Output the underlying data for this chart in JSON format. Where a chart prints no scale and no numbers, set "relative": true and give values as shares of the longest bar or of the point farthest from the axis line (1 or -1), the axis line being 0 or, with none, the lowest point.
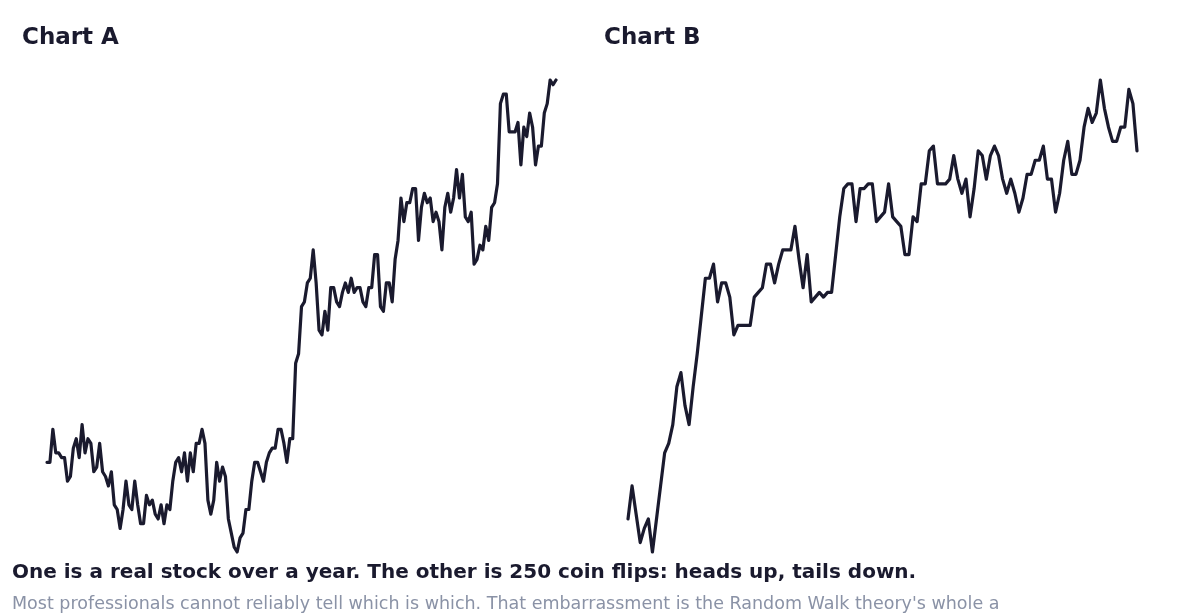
{
  "chart_data": [
    {
      "type": "line",
      "title": "Chart A",
      "relative": true,
      "annotations": [
        "One is a real stock over a year. The other is 250 coin flips: heads up, tails down.",
        "Most professionals cannot reliably tell which is which. That embarrassment is the Random Walk theory's whole a"
      ],
      "categories": [
        null,
        null,
        null,
        null,
        null,
        null,
        null,
        null,
        null,
        null,
        null,
        null,
        null,
        null,
        null,
        null,
        null,
        null,
        null,
        null,
        null,
        null,
        null,
        null,
        null,
        null,
        null,
        null,
        null,
        null,
        null,
        null,
        null,
        null,
        null,
        null,
        null,
        null,
        null,
        null,
        null,
        null,
        null,
        null,
        null,
        null,
        null,
        null,
        null,
        null,
        null,
        null,
        null,
        null,
        null,
        null,
        null,
        null,
        null,
        null,
        null,
        null,
        null,
        null,
        null,
        null,
        null,
        null,
        null,
        null,
        null,
        null,
        null,
        null,
        null,
        null,
        null,
        null,
        null,
        null,
        null,
        null,
        null,
        null,
        null,
        null,
        null,
        null,
        null,
        null,
        null,
        null,
        null,
        null,
        null,
        null,
        null,
        null,
        null,
        null,
        null,
        null,
        null,
        null,
        null,
        null,
        null,
        null,
        null,
        null,
        null,
        null,
        null,
        null,
        null,
        null,
        null,
        null,
        null,
        null,
        null,
        null,
        null,
        null,
        null,
        null,
        null,
        null,
        null,
        null,
        null,
        null,
        null,
        null,
        null,
        null,
        null,
        null,
        null,
        null,
        null,
        null,
        null,
        null,
        null,
        null,
        null,
        null,
        null,
        null,
        null,
        null,
        null,
        null,
        null,
        null,
        null,
        null,
        null,
        null,
        null,
        null,
        null,
        null,
        null,
        null,
        null,
        null,
        null,
        null,
        null,
        null,
        null,
        null,
        null
      ],
      "series": [
        {
          "color": "#1a1a2e",
          "values": [
            0.19,
            0.19,
            0.26,
            0.21,
            0.21,
            0.2,
            0.2,
            0.15,
            0.16,
            0.22,
            0.24,
            0.2,
            0.27,
            0.21,
            0.24,
            0.23,
            0.17,
            0.18,
            0.23,
            0.17,
            0.16,
            0.14,
            0.17,
            0.1,
            0.09,
            0.05,
            0.09,
            0.15,
            0.1,
            0.09,
            0.15,
            0.1,
            0.06,
            0.06,
            0.12,
            0.1,
            0.11,
            0.08,
            0.07,
            0.1,
            0.06,
            0.1,
            0.09,
            0.15,
            0.19,
            0.2,
            0.17,
            0.21,
            0.15,
            0.21,
            0.17,
            0.23,
            0.23,
            0.26,
            0.23,
            0.11,
            0.08,
            0.11,
            0.19,
            0.15,
            0.18,
            0.16,
            0.07,
            0.04,
            0.01,
            0,
            0.03,
            0.04,
            0.09,
            0.09,
            0.15,
            0.19,
            0.19,
            0.17,
            0.15,
            0.19,
            0.21,
            0.22,
            0.22,
            0.26,
            0.26,
            0.23,
            0.19,
            0.24,
            0.24,
            0.4,
            0.42,
            0.52,
            0.53,
            0.57,
            0.58,
            0.64,
            0.57,
            0.47,
            0.46,
            0.51,
            0.47,
            0.56,
            0.56,
            0.53,
            0.52,
            0.55,
            0.57,
            0.55,
            0.58,
            0.55,
            0.56,
            0.56,
            0.53,
            0.52,
            0.56,
            0.56,
            0.63,
            0.63,
            0.52,
            0.51,
            0.57,
            0.57,
            0.53,
            0.62,
            0.66,
            0.75,
            0.7,
            0.74,
            0.74,
            0.77,
            0.77,
            0.66,
            0.73,
            0.76,
            0.74,
            0.75,
            0.7,
            0.72,
            0.7,
            0.64,
            0.73,
            0.76,
            0.72,
            0.75,
            0.81,
            0.75,
            0.8,
            0.71,
            0.7,
            0.72,
            0.61,
            0.62,
            0.65,
            0.64,
            0.69,
            0.66,
            0.73,
            0.74,
            0.78,
            0.95,
            0.97,
            0.97,
            0.89,
            0.89,
            0.89,
            0.91,
            0.82,
            0.9,
            0.88,
            0.93,
            0.9,
            0.82,
            0.86,
            0.86,
            0.93,
            0.95,
            1,
            0.99,
            1
          ]
        }
      ]
    },
    {
      "type": "line",
      "title": "Chart B",
      "relative": true,
      "categories": [
        null,
        null,
        null,
        null,
        null,
        null,
        null,
        null,
        null,
        null,
        null,
        null,
        null,
        null,
        null,
        null,
        null,
        null,
        null,
        null,
        null,
        null,
        null,
        null,
        null,
        null,
        null,
        null,
        null,
        null,
        null,
        null,
        null,
        null,
        null,
        null,
        null,
        null,
        null,
        null,
        null,
        null,
        null,
        null,
        null,
        null,
        null,
        null,
        null,
        null,
        null,
        null,
        null,
        null,
        null,
        null,
        null,
        null,
        null,
        null,
        null,
        null,
        null,
        null,
        null,
        null,
        null,
        null,
        null,
        null,
        null,
        null,
        null,
        null,
        null,
        null,
        null,
        null,
        null,
        null,
        null,
        null,
        null,
        null,
        null,
        null,
        null,
        null,
        null,
        null,
        null,
        null,
        null,
        null,
        null,
        null,
        null,
        null,
        null,
        null,
        null,
        null,
        null,
        null,
        null,
        null,
        null,
        null,
        null,
        null,
        null,
        null,
        null,
        null,
        null,
        null,
        null,
        null,
        null,
        null,
        null,
        null,
        null,
        null,
        null,
        null
      ],
      "series": [
        {
          "color": "#1a1a2e",
          "values": [
            0.07,
            0.14,
            0.08,
            0.02,
            0.05,
            0.07,
            0,
            0.07,
            0.14,
            0.21,
            0.23,
            0.27,
            0.35,
            0.38,
            0.31,
            0.27,
            0.35,
            0.42,
            0.5,
            0.58,
            0.58,
            0.61,
            0.53,
            0.57,
            0.57,
            0.54,
            0.46,
            0.48,
            0.48,
            0.48,
            0.48,
            0.54,
            0.55,
            0.56,
            0.61,
            0.61,
            0.57,
            0.61,
            0.64,
            0.64,
            0.64,
            0.69,
            0.62,
            0.56,
            0.63,
            0.53,
            0.54,
            0.55,
            0.54,
            0.55,
            0.55,
            0.63,
            0.71,
            0.77,
            0.78,
            0.78,
            0.7,
            0.77,
            0.77,
            0.78,
            0.78,
            0.7,
            0.71,
            0.72,
            0.78,
            0.71,
            0.7,
            0.69,
            0.63,
            0.63,
            0.71,
            0.7,
            0.78,
            0.78,
            0.85,
            0.86,
            0.78,
            0.78,
            0.78,
            0.79,
            0.84,
            0.79,
            0.76,
            0.79,
            0.71,
            0.77,
            0.85,
            0.84,
            0.79,
            0.84,
            0.86,
            0.84,
            0.79,
            0.76,
            0.79,
            0.76,
            0.72,
            0.75,
            0.8,
            0.8,
            0.83,
            0.83,
            0.86,
            0.79,
            0.79,
            0.72,
            0.76,
            0.83,
            0.87,
            0.8,
            0.8,
            0.83,
            0.9,
            0.94,
            0.91,
            0.93,
            1,
            0.94,
            0.9,
            0.87,
            0.87,
            0.9,
            0.9,
            0.98,
            0.95,
            0.85
          ]
        }
      ]
    }
  ]
}
